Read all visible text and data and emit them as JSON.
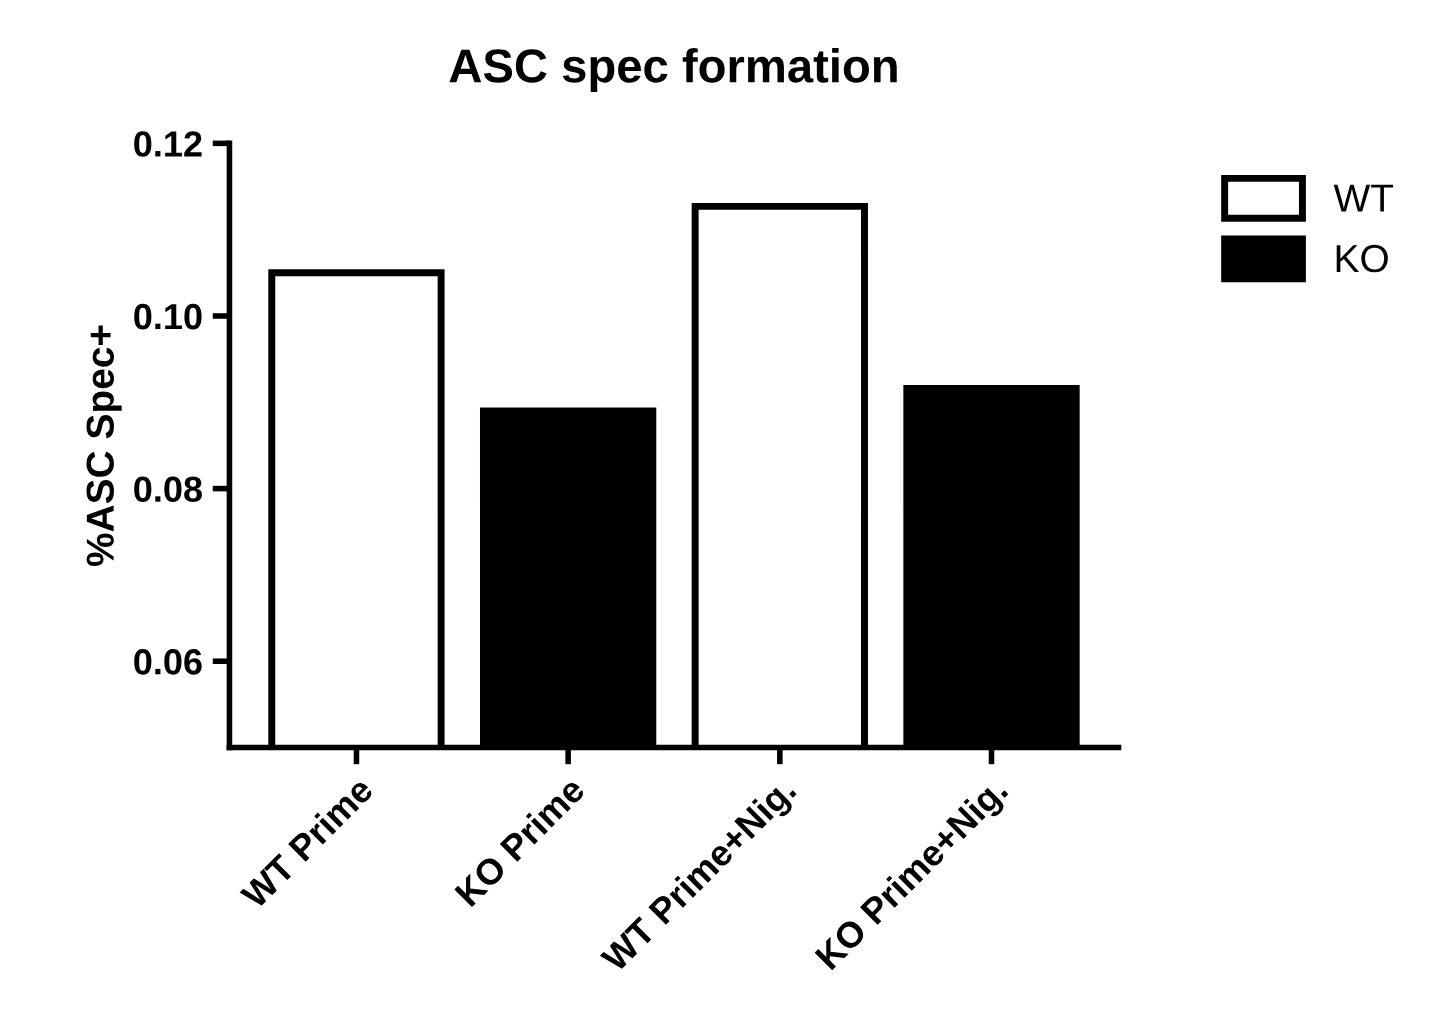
{
  "chart_data": {
    "type": "bar",
    "title": "ASC spec formation",
    "ylabel": "%ASC Spec+",
    "categories": [
      "WT Prime",
      "KO Prime",
      "WT Prime+Nig.",
      "KO Prime+Nig."
    ],
    "series": [
      {
        "name": "WT",
        "color": "#ffffff",
        "values": [
          0.105,
          null,
          0.1127,
          null
        ]
      },
      {
        "name": "KO",
        "color": "#000000",
        "values": [
          null,
          0.089,
          null,
          0.0916
        ]
      }
    ],
    "ylim": [
      0.05,
      0.12
    ],
    "yticks": [
      {
        "value": 0.06,
        "label": "0.06"
      },
      {
        "value": 0.08,
        "label": "0.08"
      },
      {
        "value": 0.1,
        "label": "0.10"
      },
      {
        "value": 0.12,
        "label": "0.12"
      }
    ],
    "grid": false,
    "legend": "top right"
  }
}
